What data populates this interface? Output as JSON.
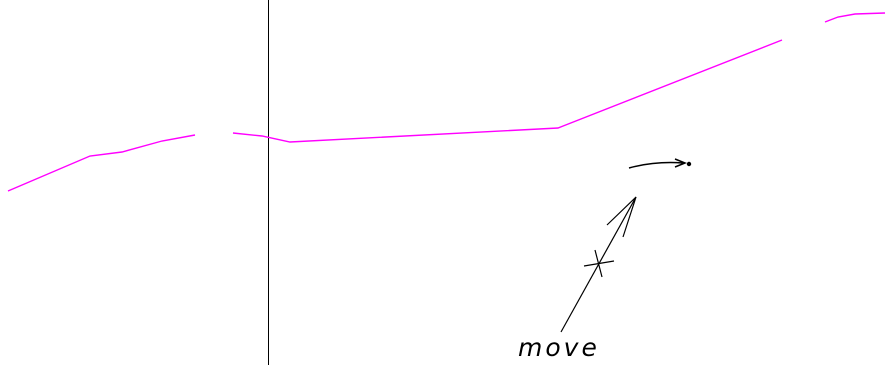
{
  "drawing": {
    "annotation_label": "move",
    "colors": {
      "polyline": "#ff00ff",
      "ink": "#000000",
      "background": "#ffffff"
    }
  }
}
